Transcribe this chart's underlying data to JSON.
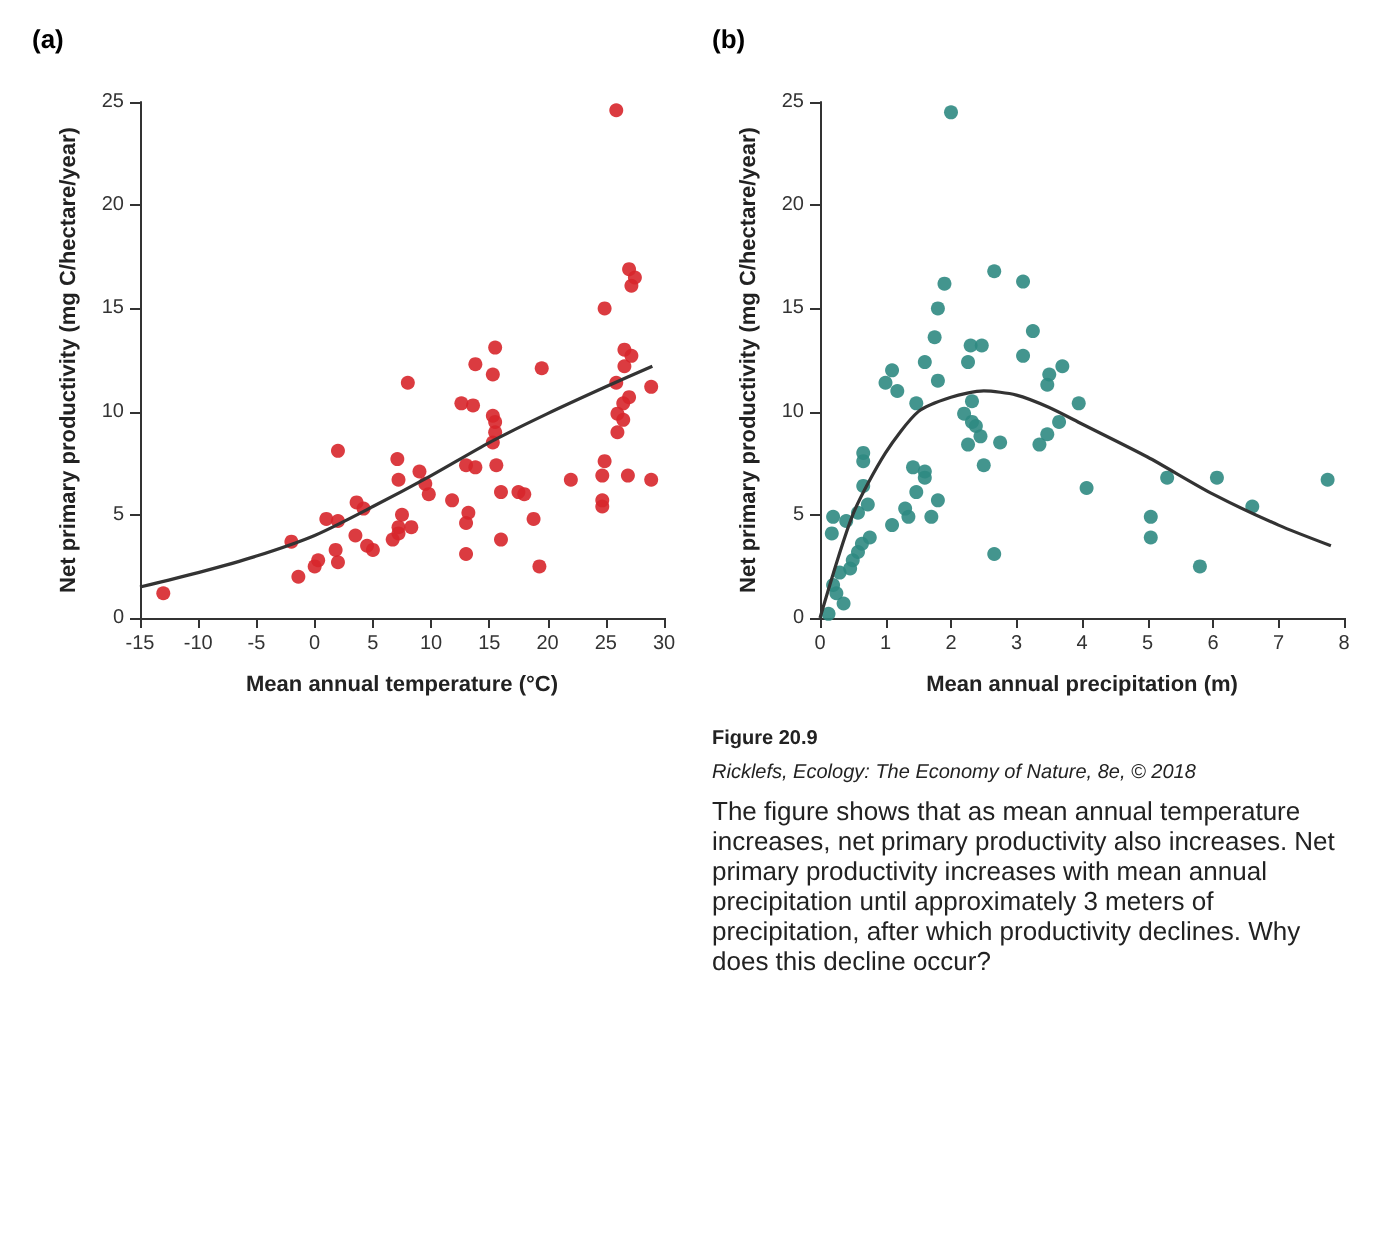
{
  "chart_data": [
    {
      "type": "scatter",
      "title": "(a)",
      "xlabel": "Mean annual temperature (°C)",
      "ylabel": "Net primary productivity (mg C/hectare/year)",
      "xlim": [
        -15,
        30
      ],
      "xticks": [
        -15,
        -10,
        -5,
        0,
        5,
        10,
        15,
        20,
        25,
        30
      ],
      "ylim": [
        0,
        25
      ],
      "yticks": [
        0,
        5,
        10,
        15,
        20,
        25
      ],
      "grid": false,
      "marker": "circle",
      "series": [
        {
          "color": "#d7262b",
          "x": [
            -13,
            -1.4,
            -2,
            0,
            0.3,
            2,
            1.8,
            1,
            2,
            2,
            3.5,
            3.6,
            4.2,
            4.5,
            5,
            6.7,
            7.2,
            7.2,
            7.5,
            7.2,
            7.1,
            8.3,
            8,
            9,
            9.5,
            9.8,
            11.8,
            13,
            13,
            13.2,
            12.6,
            13.6,
            13,
            13.8,
            13.8,
            15.3,
            15.5,
            15.5,
            15.3,
            15.6,
            15.3,
            15.5,
            16,
            16,
            17.5,
            18,
            19.3,
            18.8,
            19.5,
            22,
            24.7,
            24.7,
            24.7,
            24.9,
            24.9,
            26,
            26.5,
            26,
            26.5,
            27,
            25.9,
            26.9,
            28.9,
            28.9,
            26.6,
            27.2,
            26.6,
            27.2,
            27.5,
            27,
            25.9
          ],
          "values": [
            1.2,
            2,
            3.7,
            2.5,
            2.8,
            2.7,
            3.3,
            4.8,
            4.7,
            8.1,
            4,
            5.6,
            5.3,
            3.5,
            3.3,
            3.8,
            4.1,
            4.4,
            5,
            6.7,
            7.7,
            4.4,
            11.4,
            7.1,
            6.5,
            6,
            5.7,
            3.1,
            4.6,
            5.1,
            10.4,
            10.3,
            7.4,
            7.3,
            12.3,
            8.5,
            9,
            9.5,
            9.8,
            7.4,
            11.8,
            13.1,
            3.8,
            6.1,
            6.1,
            6,
            2.5,
            4.8,
            12.1,
            6.7,
            5.4,
            5.7,
            6.9,
            7.6,
            15,
            9,
            9.6,
            9.9,
            10.4,
            10.7,
            11.4,
            6.9,
            11.2,
            6.7,
            12.2,
            12.7,
            13,
            16.1,
            16.5,
            16.9,
            24.6
          ]
        },
        {
          "type": "line",
          "color": "#333333",
          "marker": "none",
          "x": [
            -15,
            -10,
            -5,
            0,
            5,
            10,
            15,
            20,
            25,
            29
          ],
          "values": [
            1.5,
            2.2,
            3,
            4,
            5.4,
            6.9,
            8.5,
            9.9,
            11.2,
            12.2
          ]
        }
      ]
    },
    {
      "type": "scatter",
      "title": "(b)",
      "xlabel": "Mean annual precipitation (m)",
      "ylabel": "Net primary productivity (mg C/hectare/year)",
      "xlim": [
        0,
        8
      ],
      "xticks": [
        0,
        1,
        2,
        3,
        4,
        5,
        6,
        7,
        8
      ],
      "ylim": [
        0,
        25
      ],
      "yticks": [
        0,
        5,
        10,
        15,
        20,
        25
      ],
      "grid": false,
      "marker": "circle",
      "annotations": [
        "Figure 20.9",
        "Ricklefs, Ecology: The Economy of Nature, 8e, © 2018",
        "The figure shows that as mean annual temperature increases, net primary productivity also increases. Net primary productivity increases with mean annual precipitation until approximately 3 meters of precipitation, after which productivity declines. Why does this decline occur?"
      ],
      "series": [
        {
          "color": "#2f8a82",
          "x": [
            0.13,
            0.36,
            0.25,
            0.2,
            0.3,
            0.46,
            0.5,
            0.58,
            0.64,
            0.18,
            0.2,
            0.4,
            0.58,
            0.73,
            0.76,
            0.66,
            0.66,
            0.66,
            1.1,
            1.35,
            1.3,
            1.47,
            1.6,
            1.42,
            1.7,
            1.8,
            1.6,
            1.47,
            1,
            1.18,
            1.1,
            1.6,
            1.8,
            1.75,
            1.8,
            1.9,
            2,
            2.66,
            2.5,
            2.26,
            2.45,
            2.38,
            2.2,
            2.32,
            2.32,
            2.75,
            2.26,
            2.3,
            2.47,
            2.66,
            3.1,
            3.25,
            3.1,
            3.35,
            3.47,
            3.65,
            3.47,
            3.5,
            3.7,
            3.95,
            4.07,
            5.05,
            5.05,
            5.3,
            5.8,
            6.06,
            6.6,
            7.75
          ],
          "values": [
            0.2,
            0.7,
            1.2,
            1.6,
            2.2,
            2.4,
            2.8,
            3.2,
            3.6,
            4.1,
            4.9,
            4.7,
            5.1,
            5.5,
            3.9,
            6.4,
            7.6,
            8,
            4.5,
            4.9,
            5.3,
            6.1,
            6.8,
            7.3,
            4.9,
            5.7,
            7.1,
            10.4,
            11.4,
            11,
            12,
            12.4,
            11.5,
            13.6,
            15,
            16.2,
            24.5,
            3.1,
            7.4,
            8.4,
            8.8,
            9.3,
            9.9,
            9.5,
            10.5,
            8.5,
            12.4,
            13.2,
            13.2,
            16.8,
            12.7,
            13.9,
            16.3,
            8.4,
            8.9,
            9.5,
            11.3,
            11.8,
            12.2,
            10.4,
            6.3,
            3.9,
            4.9,
            6.8,
            2.5,
            6.8,
            5.4,
            6.7
          ]
        },
        {
          "type": "line",
          "color": "#333333",
          "marker": "none",
          "x": [
            0,
            0.5,
            1,
            1.5,
            2,
            2.5,
            3,
            3.5,
            4,
            5,
            6,
            7,
            7.8
          ],
          "values": [
            0,
            5,
            8,
            10,
            10.7,
            11,
            10.8,
            10.2,
            9.4,
            7.8,
            6,
            4.5,
            3.5
          ]
        }
      ]
    }
  ]
}
